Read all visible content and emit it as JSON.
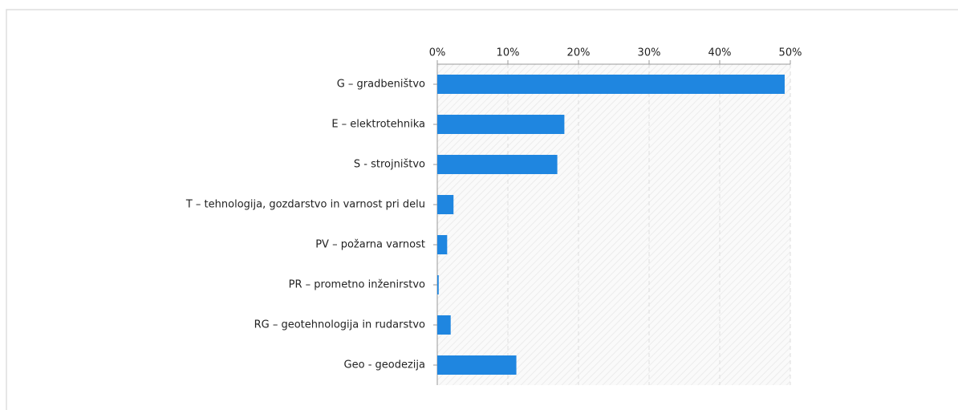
{
  "chart_data": {
    "type": "bar",
    "orientation": "horizontal",
    "categories": [
      "G – gradbeništvo",
      "E – elektrotehnika",
      "S - strojništvo",
      "T – tehnologija, gozdarstvo in varnost pri delu",
      "PV – požarna varnost",
      "PR – prometno inženirstvo",
      "RG – geotehnologija in rudarstvo",
      "Geo - geodezija"
    ],
    "values": [
      49.2,
      18,
      17,
      2.3,
      1.4,
      0.2,
      1.9,
      11.2
    ],
    "color": "#1f86e0",
    "xlim": [
      0,
      50
    ],
    "xticks": [
      {
        "value": 0,
        "label": "0%"
      },
      {
        "value": 10,
        "label": "10%"
      },
      {
        "value": 20,
        "label": "20%"
      },
      {
        "value": 30,
        "label": "30%"
      },
      {
        "value": 40,
        "label": "40%"
      },
      {
        "value": 50,
        "label": "50%"
      }
    ],
    "grid": true
  }
}
